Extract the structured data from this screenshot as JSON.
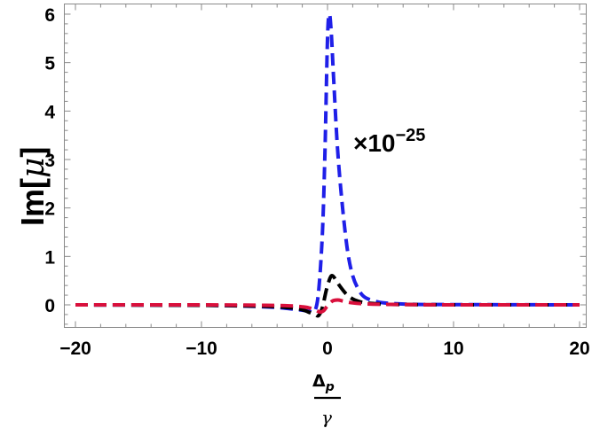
{
  "chart_data": {
    "type": "line",
    "title": "",
    "xlabel": "Δp / γ",
    "ylabel": "Im[μ]",
    "annotation": "×10^-25",
    "xlim": [
      -20,
      20
    ],
    "ylim": [
      -0.45,
      6.15
    ],
    "x_ticks": [
      -20,
      -10,
      0,
      10,
      20
    ],
    "y_ticks": [
      0,
      1,
      2,
      3,
      4,
      5,
      6
    ],
    "grid": false,
    "legend": null,
    "line_style": "dashed",
    "series": [
      {
        "name": "blue",
        "color": "#1f1fe8",
        "x": [
          -20,
          -10,
          -5,
          -3,
          -2,
          -1.5,
          -1,
          -0.7,
          -0.4,
          -0.2,
          0,
          0.15,
          0.3,
          0.5,
          0.8,
          1.2,
          1.6,
          2,
          2.5,
          3,
          4,
          5,
          7,
          10,
          20
        ],
        "y": [
          0,
          -0.01,
          -0.04,
          -0.08,
          -0.11,
          -0.13,
          -0.12,
          0.3,
          1.5,
          3.2,
          5.5,
          6.0,
          5.6,
          4.6,
          3.2,
          2.0,
          1.1,
          0.6,
          0.3,
          0.15,
          0.06,
          0.03,
          0.01,
          0.005,
          0
        ]
      },
      {
        "name": "black",
        "color": "#000000",
        "x": [
          -20,
          -10,
          -5,
          -3,
          -2,
          -1.5,
          -1,
          -0.7,
          -0.4,
          -0.1,
          0.2,
          0.4,
          0.7,
          1,
          1.5,
          2,
          2.5,
          3,
          4,
          5,
          10,
          20
        ],
        "y": [
          0,
          -0.01,
          -0.03,
          -0.06,
          -0.1,
          -0.15,
          -0.2,
          -0.22,
          -0.05,
          0.3,
          0.55,
          0.6,
          0.5,
          0.38,
          0.22,
          0.12,
          0.07,
          0.04,
          0.02,
          0.01,
          0,
          0
        ]
      },
      {
        "name": "red",
        "color": "#d9103c",
        "x": [
          -20,
          -10,
          -5,
          -3,
          -2,
          -1.5,
          -1,
          -0.6,
          -0.3,
          0,
          0.4,
          0.8,
          1.2,
          2,
          3,
          5,
          10,
          20
        ],
        "y": [
          0,
          0,
          -0.01,
          -0.02,
          -0.04,
          -0.06,
          -0.1,
          -0.15,
          -0.12,
          -0.02,
          0.08,
          0.1,
          0.08,
          0.04,
          0.02,
          0.01,
          0,
          0
        ]
      }
    ]
  },
  "labels": {
    "y_axis_main": "Im[",
    "y_axis_mu": "μ",
    "y_axis_close": "]",
    "annotation_base": "×10",
    "annotation_exp": "−25",
    "x_numerator": "Δ",
    "x_numerator_sub": "p",
    "x_denominator": "γ",
    "x_ticks": [
      "−20",
      "−10",
      "0",
      "10",
      "20"
    ],
    "y_ticks": [
      "0",
      "1",
      "2",
      "3",
      "4",
      "5",
      "6"
    ]
  }
}
